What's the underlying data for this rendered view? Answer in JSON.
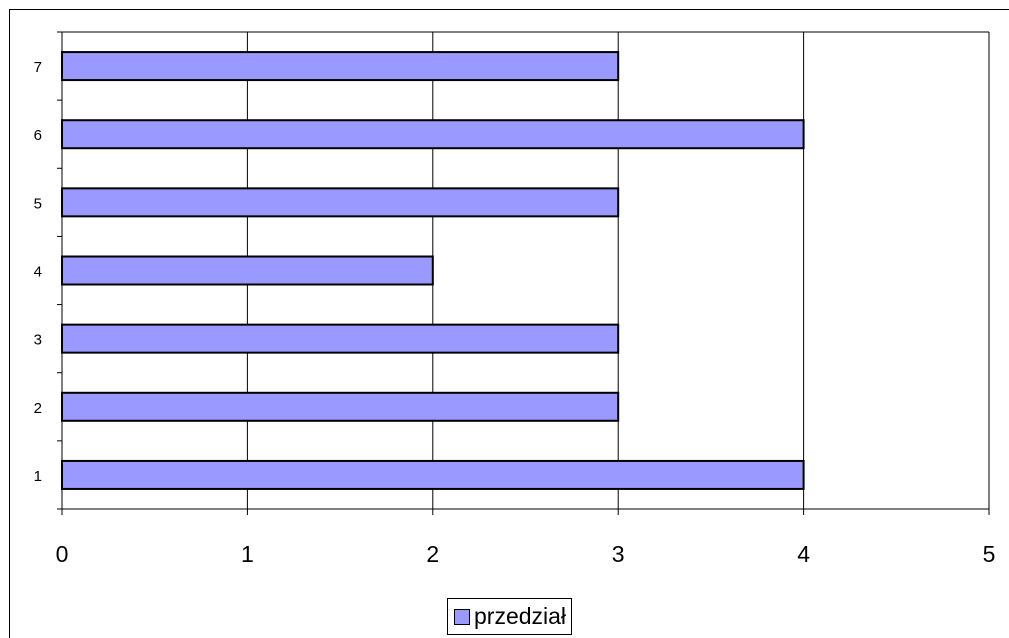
{
  "chart_data": {
    "type": "bar",
    "orientation": "horizontal",
    "categories": [
      "1",
      "2",
      "3",
      "4",
      "5",
      "6",
      "7"
    ],
    "series": [
      {
        "name": "przedział",
        "values": [
          4,
          3,
          3,
          2,
          3,
          4,
          3
        ],
        "color": "#9999ff"
      }
    ],
    "x_ticks": [
      "0",
      "1",
      "2",
      "3",
      "4",
      "5"
    ],
    "xlim": [
      0,
      5
    ],
    "grid": "vertical",
    "legend": "bottom",
    "title": "",
    "xlabel": "",
    "ylabel": ""
  }
}
